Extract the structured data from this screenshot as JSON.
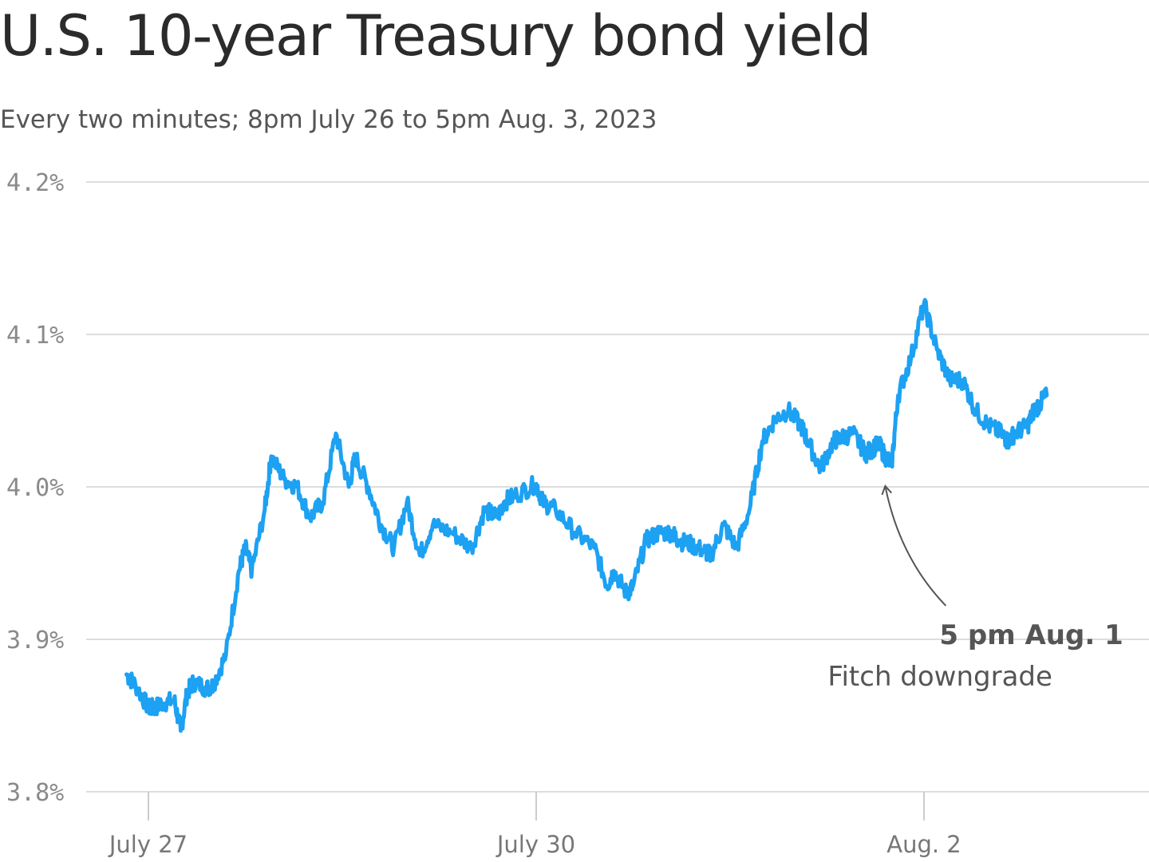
{
  "chart_data": {
    "type": "line",
    "title": "U.S. 10-year Treasury bond yield",
    "subtitle": "Every two minutes; 8pm July 26 to 5pm Aug. 3, 2023",
    "xlabel": "",
    "ylabel": "",
    "ylim": [
      3.8,
      4.2
    ],
    "y_ticks": [
      4.2,
      4.1,
      4.0,
      3.9,
      3.8
    ],
    "y_tick_labels": [
      "4.2%",
      "4.1%",
      "4.0%",
      "3.9%",
      "3.8%"
    ],
    "x_ticks": [
      27,
      30,
      33
    ],
    "x_tick_labels": [
      "July 27",
      "July 30",
      "Aug. 2"
    ],
    "grid": true,
    "color": "#1da1f2",
    "annotation": {
      "x": 32.7,
      "y": 4.01,
      "label_bold": "5 pm Aug. 1",
      "label": "Fitch downgrade"
    },
    "series": [
      {
        "x": [
          26.83,
          26.9,
          27.0,
          27.05,
          27.1,
          27.2,
          27.25,
          27.3,
          27.35,
          27.45,
          27.5,
          27.6,
          27.7,
          27.75,
          27.8,
          27.9,
          27.95,
          28.05,
          28.15,
          28.25,
          28.35,
          28.45,
          28.55,
          28.6,
          28.7,
          28.8,
          28.9,
          29.0,
          29.1,
          29.2,
          29.35,
          29.5,
          29.6,
          29.7,
          29.75,
          29.85,
          30.0,
          30.05,
          30.15,
          30.3,
          30.45,
          30.55,
          30.6,
          30.7,
          30.75,
          30.85,
          30.95,
          31.05,
          31.1,
          31.2,
          31.3,
          31.35,
          31.45,
          31.55,
          31.65,
          31.75,
          31.85,
          31.95,
          32.05,
          32.1,
          32.2,
          32.3,
          32.35,
          32.45,
          32.55,
          32.6,
          32.65,
          32.7,
          32.75,
          32.8,
          32.9,
          33.0,
          33.1,
          33.2,
          33.3,
          33.4,
          33.5,
          33.6,
          33.65,
          33.7,
          33.8,
          33.85,
          33.9,
          33.95
        ],
        "y": [
          3.877,
          3.87,
          3.855,
          3.855,
          3.858,
          3.86,
          3.84,
          3.865,
          3.872,
          3.868,
          3.87,
          3.89,
          3.945,
          3.96,
          3.945,
          3.985,
          4.02,
          4.005,
          4.0,
          3.98,
          3.99,
          4.035,
          4.0,
          4.02,
          4.0,
          3.975,
          3.96,
          3.99,
          3.955,
          3.975,
          3.97,
          3.96,
          3.985,
          3.98,
          3.99,
          3.995,
          4.002,
          3.99,
          3.985,
          3.97,
          3.96,
          3.935,
          3.945,
          3.93,
          3.935,
          3.965,
          3.97,
          3.97,
          3.965,
          3.962,
          3.958,
          3.955,
          3.975,
          3.96,
          3.985,
          4.03,
          4.045,
          4.05,
          4.04,
          4.03,
          4.012,
          4.03,
          4.032,
          4.035,
          4.022,
          4.025,
          4.028,
          4.02,
          4.015,
          4.06,
          4.085,
          4.12,
          4.09,
          4.07,
          4.07,
          4.05,
          4.04,
          4.035,
          4.03,
          4.035,
          4.04,
          4.05,
          4.055,
          4.06
        ]
      }
    ]
  }
}
